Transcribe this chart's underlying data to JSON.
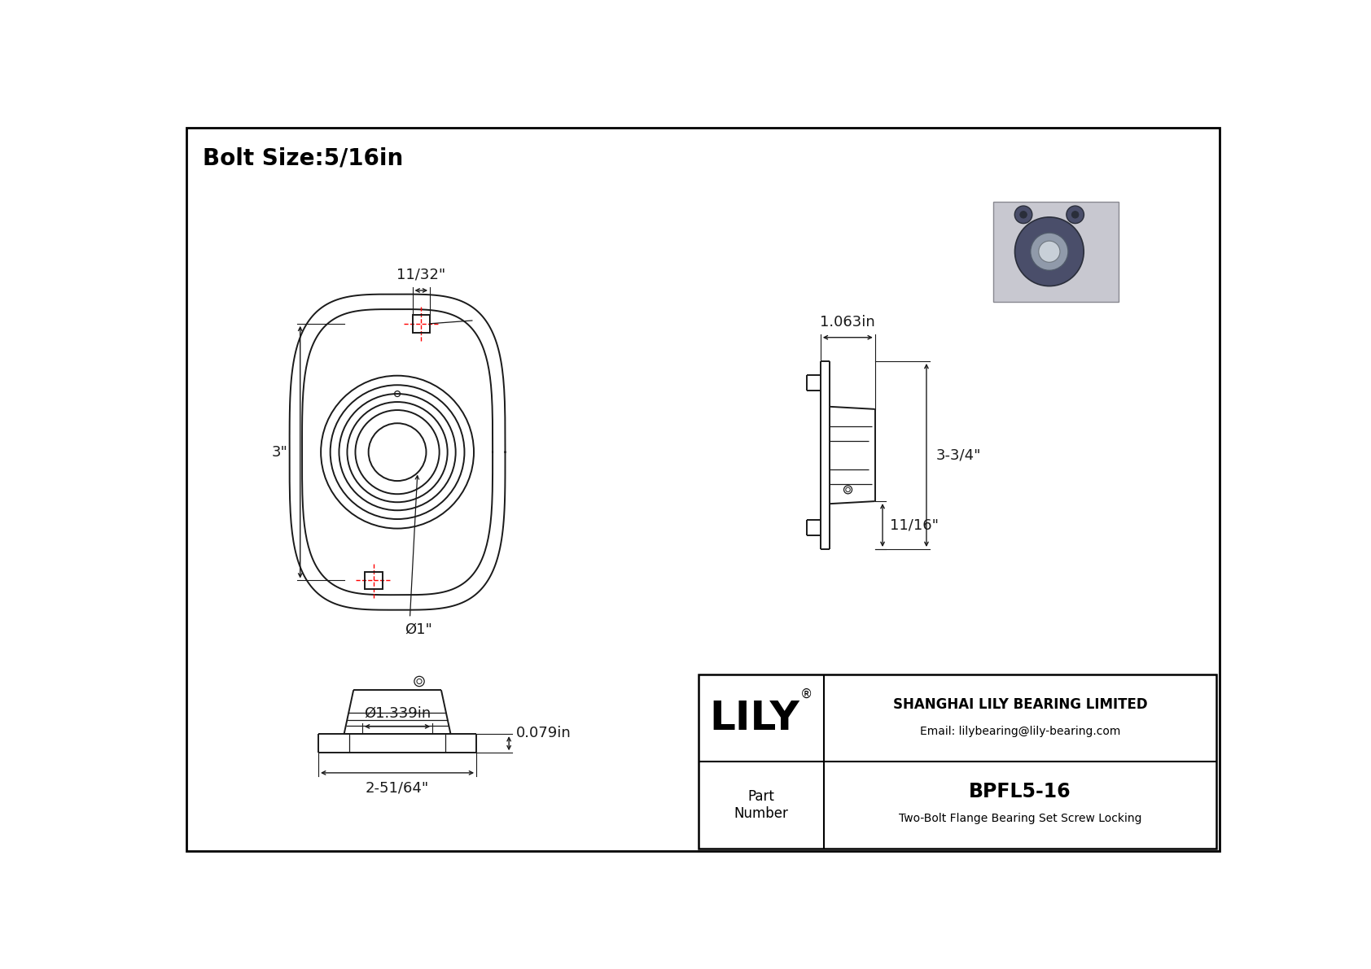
{
  "title": "Bolt Size:5/16in",
  "bg": "#ffffff",
  "lc": "#1a1a1a",
  "dc": "#1a1a1a",
  "rdc": "#ff0000",
  "title_fs": 20,
  "dim_fs": 13,
  "company_name": "SHANGHAI LILY BEARING LIMITED",
  "company_email": "Email: lilybearing@lily-bearing.com",
  "part_number_label": "Part\nNumber",
  "part_number": "BPFL5-16",
  "part_desc": "Two-Bolt Flange Bearing Set Screw Locking",
  "lily_text": "LILY",
  "dims": {
    "bolt_hole_width": "11/32\"",
    "height_3in": "3\"",
    "bore_dia": "Ø1\"",
    "side_width": "1.063in",
    "side_height": "3-3/4\"",
    "side_bottom": "11/16\"",
    "bottom_thickness": "0.079in",
    "bore_dia2": "Ø1.339in",
    "base_width": "2-51/64\""
  }
}
